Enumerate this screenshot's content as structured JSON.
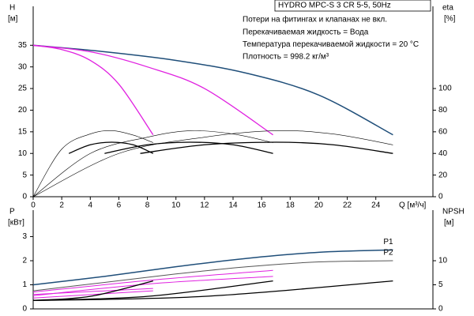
{
  "chart_data": [
    {
      "type": "line",
      "title": "HYDRO MPC-S 3 CR 5-5, 50Hz",
      "notes": [
        "Потери на фитингах и клапанах не вкл.",
        "Перекачиваемая жидкость = Вода",
        "Температура перекачиваемой жидкости = 20 °C",
        "Плотность = 998.2 кг/м³"
      ],
      "ylabel": "H",
      "yunit": "[м]",
      "y2label": "eta",
      "y2unit": "[%]",
      "xlabel": "Q [м³/ч]",
      "xlim": [
        0,
        28
      ],
      "xticks": [
        0,
        2,
        4,
        6,
        8,
        10,
        12,
        14,
        16,
        18,
        20,
        22,
        24
      ],
      "ylim": [
        0,
        44
      ],
      "yticks": [
        0,
        5,
        10,
        15,
        20,
        25,
        30,
        35
      ],
      "y2lim": [
        0,
        176
      ],
      "y2ticks": [
        0,
        20,
        40,
        60,
        80,
        100
      ],
      "series": [
        {
          "color": "#1f4e79",
          "linewidth": 1.5,
          "x": [
            0,
            5,
            10,
            15,
            20,
            25.2
          ],
          "values": [
            35,
            33.5,
            31.5,
            28.5,
            23.5,
            14.3
          ]
        },
        {
          "color": "#e020e0",
          "linewidth": 1.3,
          "x": [
            0,
            2,
            4,
            6,
            8.4
          ],
          "values": [
            35,
            34,
            31.5,
            26,
            14.3
          ]
        },
        {
          "color": "#e020e0",
          "linewidth": 1.3,
          "x": [
            0,
            4,
            8,
            12,
            16.8
          ],
          "values": [
            35,
            33.5,
            30,
            25,
            14.3
          ]
        },
        {
          "color": "#000000",
          "linewidth": 0.6,
          "axis": "y2",
          "x": [
            0,
            2,
            4,
            5.5,
            7,
            8.4
          ],
          "values": [
            0,
            44,
            58,
            61,
            57,
            50
          ]
        },
        {
          "color": "#000000",
          "linewidth": 0.6,
          "axis": "y2",
          "x": [
            0,
            4,
            8,
            11,
            14,
            16.8
          ],
          "values": [
            0,
            40,
            55,
            61,
            58,
            50
          ]
        },
        {
          "color": "#000000",
          "linewidth": 0.6,
          "axis": "y2",
          "x": [
            0,
            6,
            12,
            17,
            21,
            25.2
          ],
          "values": [
            0,
            40,
            55,
            61,
            58,
            48
          ]
        },
        {
          "color": "#000000",
          "linewidth": 1.3,
          "x": [
            2.5,
            4,
            5.5,
            7,
            8.4
          ],
          "values": [
            10,
            12,
            12.6,
            12,
            10
          ]
        },
        {
          "color": "#000000",
          "linewidth": 1.3,
          "x": [
            5,
            8,
            11,
            14,
            16.8
          ],
          "values": [
            10,
            12,
            12.6,
            12,
            10
          ]
        },
        {
          "color": "#000000",
          "linewidth": 1.3,
          "x": [
            7.5,
            12,
            17,
            21,
            25.2
          ],
          "values": [
            10,
            12,
            12.6,
            12,
            10
          ]
        }
      ]
    },
    {
      "type": "line",
      "ylabel": "P",
      "yunit": "[кВт]",
      "y2label": "NPSH",
      "y2unit": "[м]",
      "xlim": [
        0,
        28
      ],
      "ylim": [
        0,
        4.1
      ],
      "yticks": [
        0,
        1,
        2,
        3
      ],
      "y2lim": [
        0,
        20.5
      ],
      "y2ticks": [
        0,
        5,
        10
      ],
      "series": [
        {
          "name": "P1",
          "color": "#1f4e79",
          "linewidth": 1.5,
          "x": [
            0,
            5,
            10,
            15,
            20,
            25.2
          ],
          "values": [
            1.0,
            1.35,
            1.75,
            2.1,
            2.35,
            2.45
          ]
        },
        {
          "name": "P2",
          "color": "#555555",
          "linewidth": 1,
          "x": [
            0,
            5,
            10,
            15,
            20,
            25.2
          ],
          "values": [
            0.75,
            1.1,
            1.45,
            1.75,
            1.95,
            2.0
          ]
        },
        {
          "color": "#e020e0",
          "linewidth": 1,
          "x": [
            0,
            8.4
          ],
          "values": [
            0.45,
            0.75
          ]
        },
        {
          "color": "#e020e0",
          "linewidth": 1,
          "x": [
            0,
            8.4
          ],
          "values": [
            0.6,
            0.85
          ]
        },
        {
          "color": "#e020e0",
          "linewidth": 1,
          "x": [
            0,
            8.4,
            16.8
          ],
          "values": [
            0.7,
            1.2,
            1.6
          ]
        },
        {
          "color": "#e020e0",
          "linewidth": 1,
          "x": [
            0,
            8.4,
            16.8
          ],
          "values": [
            0.55,
            1.05,
            1.35
          ]
        },
        {
          "color": "#000000",
          "linewidth": 1.3,
          "axis": "y2",
          "x": [
            0,
            4,
            8.4
          ],
          "values": [
            1.75,
            2.6,
            5.8
          ]
        },
        {
          "color": "#000000",
          "linewidth": 1.3,
          "axis": "y2",
          "x": [
            0,
            8,
            16.8
          ],
          "values": [
            1.75,
            2.6,
            5.8
          ]
        },
        {
          "color": "#000000",
          "linewidth": 1.3,
          "axis": "y2",
          "x": [
            0,
            12,
            25.2
          ],
          "values": [
            1.75,
            2.6,
            5.8
          ]
        }
      ]
    }
  ]
}
